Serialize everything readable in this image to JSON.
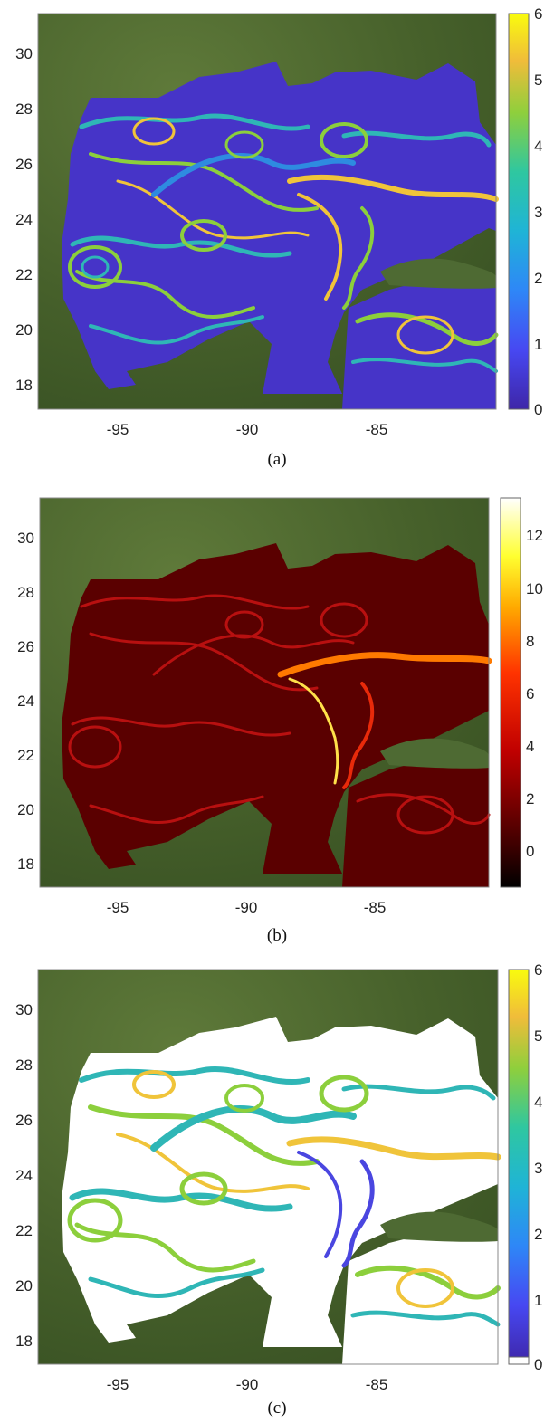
{
  "figure": {
    "lon_ticks": [
      "-95",
      "-90",
      "-85"
    ],
    "lat_ticks": [
      "30",
      "28",
      "26",
      "24",
      "22",
      "20",
      "18"
    ]
  },
  "panels": [
    {
      "id": "a",
      "caption": "(a)",
      "colormap": "parula",
      "colorbar_ticks": [
        "6",
        "5",
        "4",
        "3",
        "2",
        "1",
        "0"
      ],
      "colorbar_range": [
        0,
        6
      ],
      "ocean_color": "#4634c8",
      "filament_colors": [
        "#2e8be0",
        "#2fb6b6",
        "#8ccf3c",
        "#f0c43a"
      ]
    },
    {
      "id": "b",
      "caption": "(b)",
      "colormap": "hot",
      "colorbar_ticks": [
        "12",
        "10",
        "8",
        "6",
        "4",
        "2",
        "0"
      ],
      "colorbar_range": [
        -1.2,
        13.5
      ],
      "ocean_color": "#5a0000",
      "filament_colors": [
        "#b81010",
        "#e82a0a",
        "#ff7a00",
        "#ffe14a"
      ]
    },
    {
      "id": "c",
      "caption": "(c)",
      "colormap": "parula",
      "colorbar_ticks": [
        "6",
        "5",
        "4",
        "3",
        "2",
        "1",
        "0"
      ],
      "colorbar_range": [
        0,
        6
      ],
      "ocean_color": "#ffffff",
      "filament_colors": [
        "#4a46e0",
        "#2fb6b6",
        "#8ccf3c",
        "#f0c43a"
      ]
    }
  ]
}
